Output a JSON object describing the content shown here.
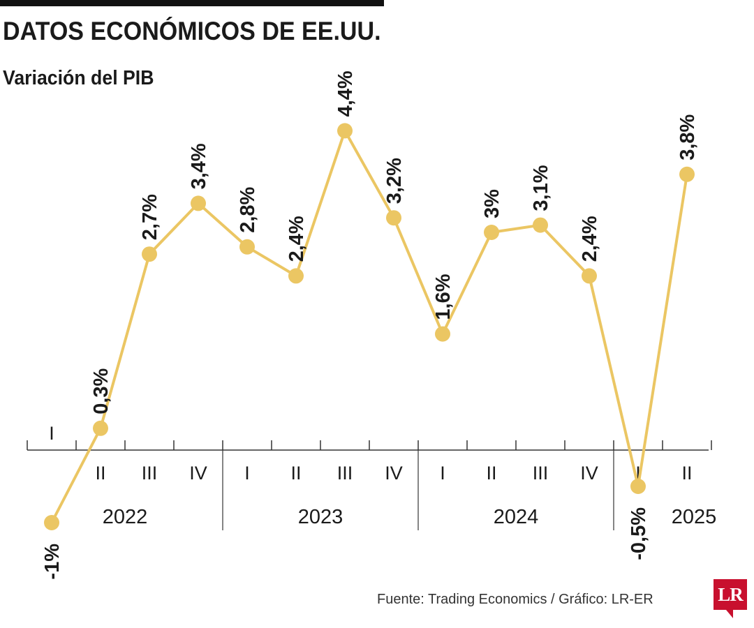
{
  "header": {
    "title": "DATOS ECONÓMICOS DE EE.UU.",
    "subtitle": "Variación del PIB"
  },
  "footer": {
    "source": "Fuente: Trading Economics / Gráfico: LR-ER",
    "logo_text": "LR"
  },
  "colors": {
    "line": "#ebc663",
    "marker": "#ebc663",
    "axis": "#333333",
    "text": "#1a1a1a",
    "logo": "#c8102e"
  },
  "chart_data": {
    "type": "line",
    "title": "Variación del PIB",
    "xlabel": "",
    "ylabel": "",
    "ylim": [
      -1.5,
      4.6
    ],
    "grid": false,
    "legend": "none",
    "quarters": [
      "I",
      "II",
      "III",
      "IV",
      "I",
      "II",
      "III",
      "IV",
      "I",
      "II",
      "III",
      "IV",
      "I",
      "II"
    ],
    "years": [
      {
        "label": "2022",
        "quarters": 4
      },
      {
        "label": "2023",
        "quarters": 4
      },
      {
        "label": "2024",
        "quarters": 4
      },
      {
        "label": "2025",
        "quarters": 2
      }
    ],
    "values": [
      -1,
      0.3,
      2.7,
      3.4,
      2.8,
      2.4,
      4.4,
      3.2,
      1.6,
      3,
      3.1,
      2.4,
      -0.5,
      3.8
    ],
    "labels": [
      "-1%",
      "0,3%",
      "2,7%",
      "3,4%",
      "2,8%",
      "2,4%",
      "4,4%",
      "3,2%",
      "1,6%",
      "3%",
      "3,1%",
      "2,4%",
      "-0,5%",
      "3,8%"
    ]
  }
}
